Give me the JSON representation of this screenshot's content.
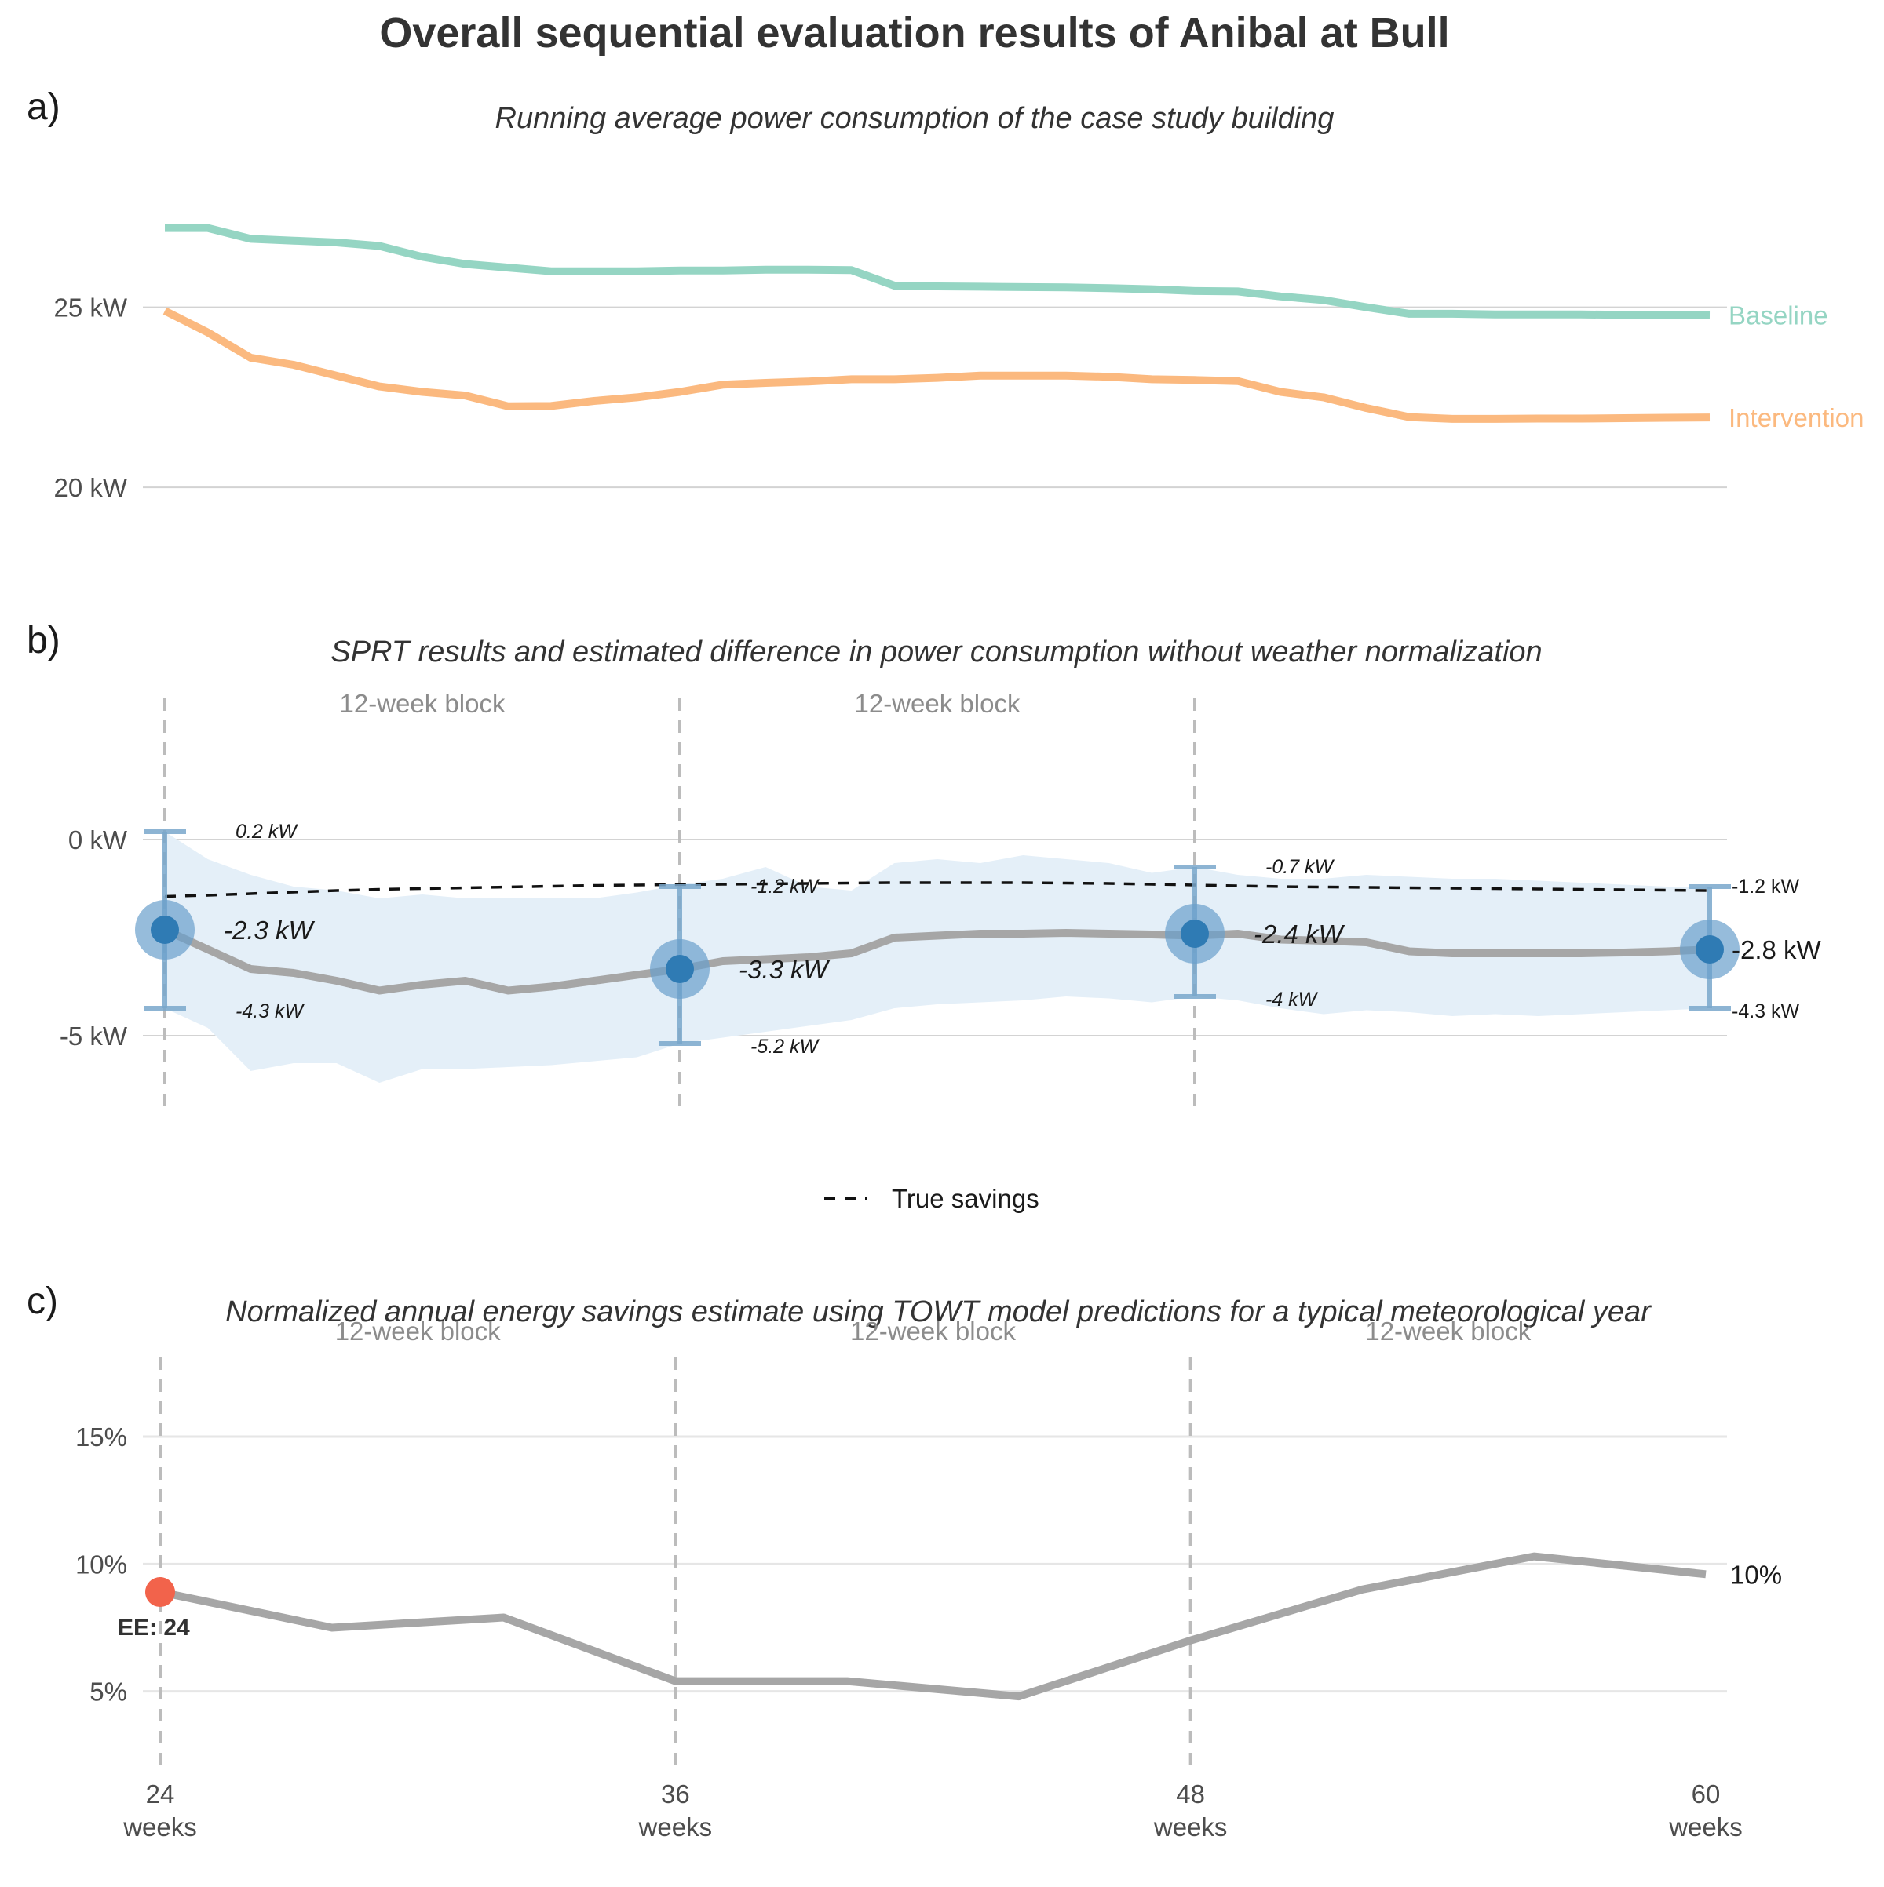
{
  "title": "Overall sequential evaluation results of Anibal at Bull",
  "colors": {
    "baseline": "#95d5c3",
    "intervention": "#fbb97f",
    "estimate_line": "#a6a6a6",
    "ci_band": "#e4eff8",
    "sprt_point": "#2f7bb4",
    "sprt_halo": "#6aa0cc",
    "errorbar": "#7aa8cc",
    "true_savings": "#111111",
    "ee_point": "#f2634b",
    "gridline": "#d3d3d3",
    "block_line": "#bcbcbc",
    "block_label": "#8c8c8c",
    "text": "#333333"
  },
  "panels": {
    "a": {
      "tag": "a)",
      "subtitle": "Running average power consumption of the case study building"
    },
    "b": {
      "tag": "b)",
      "subtitle": "SPRT results and estimated difference in power consumption without weather normalization"
    },
    "c": {
      "tag": "c)",
      "subtitle": "Normalized annual energy savings estimate using TOWT model predictions for a typical meteorological year"
    }
  },
  "block_label": "12-week block",
  "legend": {
    "true_savings": "True savings"
  },
  "x_axis": {
    "ticks": [
      {
        "value": 24,
        "line1": "24",
        "line2": "weeks"
      },
      {
        "value": 36,
        "line1": "36",
        "line2": "weeks"
      },
      {
        "value": 48,
        "line1": "48",
        "line2": "weeks"
      },
      {
        "value": 60,
        "line1": "60",
        "line2": "weeks"
      }
    ]
  },
  "chart_data": [
    {
      "panel": "a",
      "type": "line",
      "title": "Running average power consumption of the case study building",
      "xlim": [
        24,
        60
      ],
      "ylim": [
        18.5,
        29.5
      ],
      "yticks": [
        {
          "value": 20,
          "label": "20 kW"
        },
        {
          "value": 25,
          "label": "25 kW"
        }
      ],
      "x": [
        24,
        25,
        26,
        27,
        28,
        29,
        30,
        31,
        32,
        33,
        34,
        35,
        36,
        37,
        38,
        39,
        40,
        41,
        42,
        43,
        44,
        45,
        46,
        47,
        48,
        49,
        50,
        51,
        52,
        53,
        54,
        55,
        56,
        57,
        58,
        59,
        60
      ],
      "series": [
        {
          "name": "Baseline",
          "values": [
            27.2,
            27.2,
            26.9,
            26.85,
            26.8,
            26.7,
            26.4,
            26.2,
            26.1,
            26.0,
            26.0,
            26.0,
            26.02,
            26.02,
            26.04,
            26.04,
            26.03,
            25.6,
            25.58,
            25.57,
            25.56,
            25.55,
            25.53,
            25.5,
            25.45,
            25.44,
            25.3,
            25.2,
            25.0,
            24.82,
            24.82,
            24.8,
            24.8,
            24.8,
            24.79,
            24.79,
            24.78
          ]
        },
        {
          "name": "Intervention",
          "values": [
            24.9,
            24.3,
            23.6,
            23.4,
            23.1,
            22.8,
            22.65,
            22.55,
            22.25,
            22.26,
            22.4,
            22.5,
            22.65,
            22.85,
            22.9,
            22.94,
            23.0,
            23.0,
            23.04,
            23.1,
            23.1,
            23.1,
            23.07,
            23.0,
            22.98,
            22.95,
            22.65,
            22.5,
            22.2,
            21.95,
            21.9,
            21.9,
            21.91,
            21.91,
            21.92,
            21.93,
            21.94
          ]
        }
      ]
    },
    {
      "panel": "b",
      "type": "line",
      "title": "SPRT results and estimated difference in power consumption without weather normalization",
      "xlim": [
        24,
        60
      ],
      "ylim": [
        -7.5,
        4.0
      ],
      "yticks": [
        {
          "value": 0,
          "label": "0 kW"
        },
        {
          "value": -5,
          "label": "-5 kW"
        }
      ],
      "x": [
        24,
        25,
        26,
        27,
        28,
        29,
        30,
        31,
        32,
        33,
        34,
        35,
        36,
        37,
        38,
        39,
        40,
        41,
        42,
        43,
        44,
        45,
        46,
        47,
        48,
        49,
        50,
        51,
        52,
        53,
        54,
        55,
        56,
        57,
        58,
        59,
        60
      ],
      "series": [
        {
          "name": "Estimate",
          "values": [
            -2.3,
            -2.8,
            -3.3,
            -3.4,
            -3.6,
            -3.85,
            -3.7,
            -3.6,
            -3.85,
            -3.75,
            -3.6,
            -3.45,
            -3.3,
            -3.1,
            -3.05,
            -3.0,
            -2.9,
            -2.5,
            -2.45,
            -2.4,
            -2.4,
            -2.38,
            -2.4,
            -2.42,
            -2.45,
            -2.4,
            -2.55,
            -2.58,
            -2.62,
            -2.85,
            -2.9,
            -2.9,
            -2.9,
            -2.9,
            -2.88,
            -2.85,
            -2.8
          ]
        },
        {
          "name": "True savings",
          "values": [
            -1.45,
            -1.42,
            -1.38,
            -1.34,
            -1.3,
            -1.27,
            -1.25,
            -1.23,
            -1.21,
            -1.19,
            -1.17,
            -1.16,
            -1.15,
            -1.14,
            -1.13,
            -1.12,
            -1.11,
            -1.1,
            -1.1,
            -1.1,
            -1.1,
            -1.11,
            -1.12,
            -1.14,
            -1.16,
            -1.18,
            -1.2,
            -1.21,
            -1.22,
            -1.23,
            -1.24,
            -1.25,
            -1.26,
            -1.27,
            -1.28,
            -1.29,
            -1.3
          ]
        }
      ],
      "ci_upper": [
        0.2,
        -0.5,
        -0.9,
        -1.2,
        -1.3,
        -1.5,
        -1.4,
        -1.5,
        -1.5,
        -1.5,
        -1.5,
        -1.35,
        -1.15,
        -1.0,
        -0.7,
        -1.2,
        -1.3,
        -0.6,
        -0.5,
        -0.6,
        -0.4,
        -0.5,
        -0.6,
        -0.85,
        -0.7,
        -0.9,
        -1.0,
        -1.0,
        -0.9,
        -0.95,
        -1.0,
        -1.0,
        -1.05,
        -1.1,
        -1.15,
        -1.2,
        -1.2
      ],
      "ci_lower": [
        -4.3,
        -4.8,
        -5.9,
        -5.7,
        -5.7,
        -6.2,
        -5.85,
        -5.85,
        -5.8,
        -5.75,
        -5.65,
        -5.55,
        -5.2,
        -5.05,
        -4.9,
        -4.75,
        -4.6,
        -4.3,
        -4.2,
        -4.15,
        -4.1,
        -4.0,
        -4.05,
        -4.15,
        -4.0,
        -4.1,
        -4.3,
        -4.45,
        -4.35,
        -4.4,
        -4.5,
        -4.45,
        -4.5,
        -4.45,
        -4.4,
        -4.35,
        -4.3
      ],
      "sprt_points": [
        {
          "x": 24,
          "y": -2.3,
          "upper": 0.2,
          "lower": -4.3,
          "label": "-2.3 kW",
          "upper_label": "0.2 kW",
          "lower_label": "-4.3 kW"
        },
        {
          "x": 36,
          "y": -3.3,
          "upper": -1.2,
          "lower": -5.2,
          "label": "-3.3 kW",
          "upper_label": "-1.2 kW",
          "lower_label": "-5.2 kW"
        },
        {
          "x": 48,
          "y": -2.4,
          "upper": -0.7,
          "lower": -4.0,
          "label": "-2.4 kW",
          "upper_label": "-0.7 kW",
          "lower_label": "-4 kW"
        },
        {
          "x": 60,
          "y": -2.8,
          "upper": -1.2,
          "lower": -4.3,
          "label": "-2.8 kW",
          "upper_label": "-1.2 kW",
          "lower_label": "-4.3 kW"
        }
      ],
      "block_lines": [
        24,
        36,
        48
      ],
      "legend": "bottom"
    },
    {
      "panel": "c",
      "type": "line",
      "title": "Normalized annual energy savings estimate using TOWT model predictions for a typical meteorological year",
      "xlim": [
        24,
        60
      ],
      "ylim": [
        2,
        19.5
      ],
      "yticks": [
        {
          "value": 5,
          "label": "5%"
        },
        {
          "value": 10,
          "label": "10%"
        },
        {
          "value": 15,
          "label": "15%"
        }
      ],
      "x": [
        24,
        28,
        32,
        36,
        40,
        44,
        48,
        52,
        56,
        60
      ],
      "series": [
        {
          "name": "Savings",
          "values": [
            8.9,
            7.5,
            7.9,
            5.4,
            5.4,
            4.8,
            7.0,
            9.0,
            10.3,
            9.6
          ]
        }
      ],
      "end_label": "10%",
      "ee_point": {
        "x": 24,
        "y": 8.9,
        "label": "EE: 24"
      },
      "block_lines": [
        24,
        36,
        48
      ]
    }
  ]
}
